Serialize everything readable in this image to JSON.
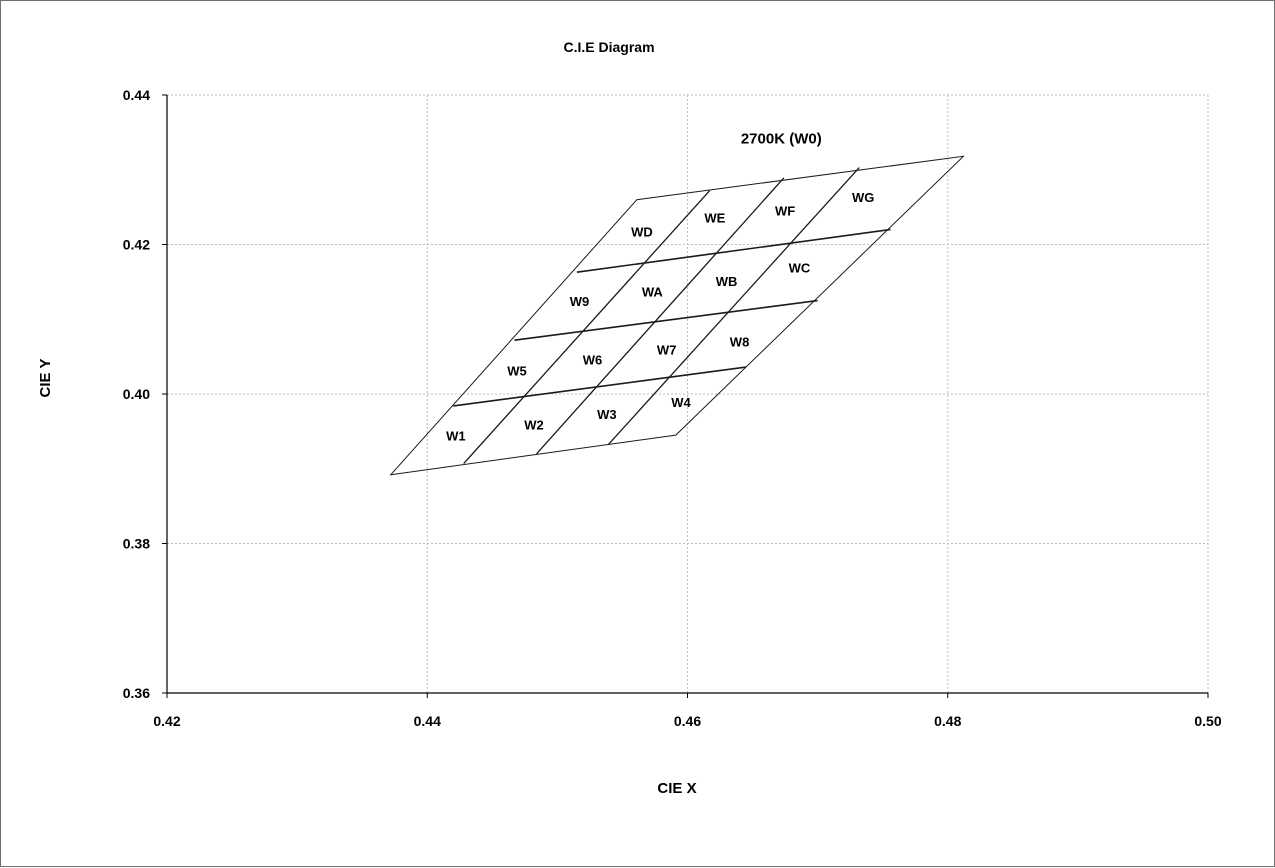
{
  "chart_data": {
    "type": "line",
    "title": "C.I.E Diagram",
    "xlabel": "CIE X",
    "ylabel": "CIE Y",
    "xlim": [
      0.42,
      0.5
    ],
    "ylim": [
      0.36,
      0.44
    ],
    "xticks": [
      "0.42",
      "0.44",
      "0.46",
      "0.48",
      "0.50"
    ],
    "yticks": [
      "0.44",
      "0.42",
      "0.40",
      "0.38",
      "0.36"
    ],
    "grid": true,
    "colors": {
      "grid": "#bdbdbd",
      "lines": "#1a1a1a",
      "axes": "#000000"
    },
    "annotation": {
      "text": "2700K (W0)",
      "x": 0.4641,
      "y": 0.4335
    },
    "outline": [
      [
        0.4372,
        0.3892
      ],
      [
        0.4591,
        0.3945
      ],
      [
        0.4812,
        0.4318
      ],
      [
        0.4561,
        0.426
      ]
    ],
    "column_lines": [
      {
        "start": [
          0.4428,
          0.3907
        ],
        "end": [
          0.4617,
          0.4272
        ]
      },
      {
        "start": [
          0.4484,
          0.392
        ],
        "end": [
          0.4674,
          0.4289
        ]
      },
      {
        "start": [
          0.4539,
          0.3932
        ],
        "end": [
          0.4732,
          0.4303
        ]
      }
    ],
    "row_lines": [
      {
        "start": [
          0.442,
          0.3984
        ],
        "end": [
          0.4645,
          0.4036
        ]
      },
      {
        "start": [
          0.4467,
          0.4072
        ],
        "end": [
          0.47,
          0.4125
        ]
      },
      {
        "start": [
          0.4515,
          0.4163
        ],
        "end": [
          0.4756,
          0.422
        ]
      }
    ],
    "regions": [
      {
        "label": "W1",
        "x": 0.4422,
        "y": 0.3943
      },
      {
        "label": "W2",
        "x": 0.4482,
        "y": 0.3958
      },
      {
        "label": "W3",
        "x": 0.4538,
        "y": 0.3972
      },
      {
        "label": "W4",
        "x": 0.4595,
        "y": 0.3988
      },
      {
        "label": "W5",
        "x": 0.4469,
        "y": 0.403
      },
      {
        "label": "W6",
        "x": 0.4527,
        "y": 0.4045
      },
      {
        "label": "W7",
        "x": 0.4584,
        "y": 0.4058
      },
      {
        "label": "W8",
        "x": 0.464,
        "y": 0.4069
      },
      {
        "label": "W9",
        "x": 0.4517,
        "y": 0.4123
      },
      {
        "label": "WA",
        "x": 0.4573,
        "y": 0.4136
      },
      {
        "label": "WB",
        "x": 0.463,
        "y": 0.415
      },
      {
        "label": "WC",
        "x": 0.4686,
        "y": 0.4168
      },
      {
        "label": "WD",
        "x": 0.4565,
        "y": 0.4216
      },
      {
        "label": "WE",
        "x": 0.4621,
        "y": 0.4235
      },
      {
        "label": "WF",
        "x": 0.4675,
        "y": 0.4244
      },
      {
        "label": "WG",
        "x": 0.4735,
        "y": 0.4262
      }
    ]
  }
}
